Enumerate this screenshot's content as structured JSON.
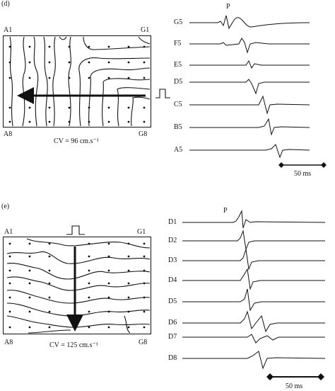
{
  "panel_d": {
    "tag": "(d)",
    "corner_tl": "A1",
    "corner_tr": "G1",
    "corner_bl": "A8",
    "corner_br": "G8",
    "cv_label": "CV = 96 cm.s⁻¹",
    "p_label": "P",
    "traces": [
      "G5",
      "F5",
      "E5",
      "D5",
      "C5",
      "B5",
      "A5"
    ],
    "scale_label": "50 ms"
  },
  "panel_e": {
    "tag": "(e)",
    "corner_tl": "A1",
    "corner_tr": "G1",
    "corner_bl": "A8",
    "corner_br": "G8",
    "cv_label": "CV = 125 cm.s⁻¹",
    "p_label": "P",
    "traces": [
      "D1",
      "D2",
      "D3",
      "D4",
      "D5",
      "D6",
      "D7",
      "D8"
    ],
    "scale_label": "50 ms"
  }
}
